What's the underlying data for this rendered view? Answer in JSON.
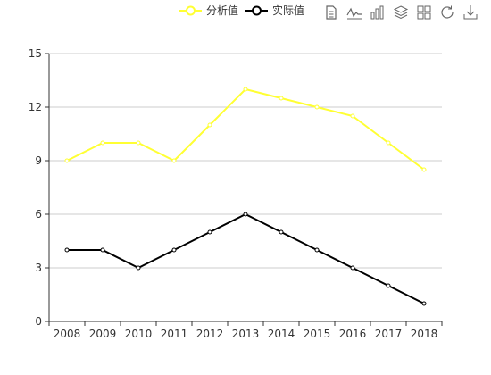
{
  "legend": {
    "items": [
      {
        "label": "分析值",
        "color": "#ffff33"
      },
      {
        "label": "实际值",
        "color": "#000000"
      }
    ]
  },
  "toolbox": {
    "icons": [
      "data-view-icon",
      "line-chart-icon",
      "bar-chart-icon",
      "stack-icon",
      "tiled-icon",
      "restore-icon",
      "save-image-icon"
    ]
  },
  "chart_data": {
    "type": "line",
    "categories": [
      "2008",
      "2009",
      "2010",
      "2011",
      "2012",
      "2013",
      "2014",
      "2015",
      "2016",
      "2017",
      "2018"
    ],
    "series": [
      {
        "name": "分析值",
        "color": "#ffff33",
        "values": [
          9,
          10,
          10,
          9,
          11,
          13,
          12.5,
          12,
          11.5,
          10,
          8.5
        ]
      },
      {
        "name": "实际值",
        "color": "#000000",
        "values": [
          4,
          4,
          3,
          4,
          5,
          6,
          5,
          4,
          3,
          2,
          1
        ]
      }
    ],
    "yticks": [
      "0",
      "3",
      "6",
      "9",
      "12",
      "15"
    ],
    "ylim": [
      0,
      15
    ],
    "grid": true,
    "legend_position": "top-right"
  }
}
